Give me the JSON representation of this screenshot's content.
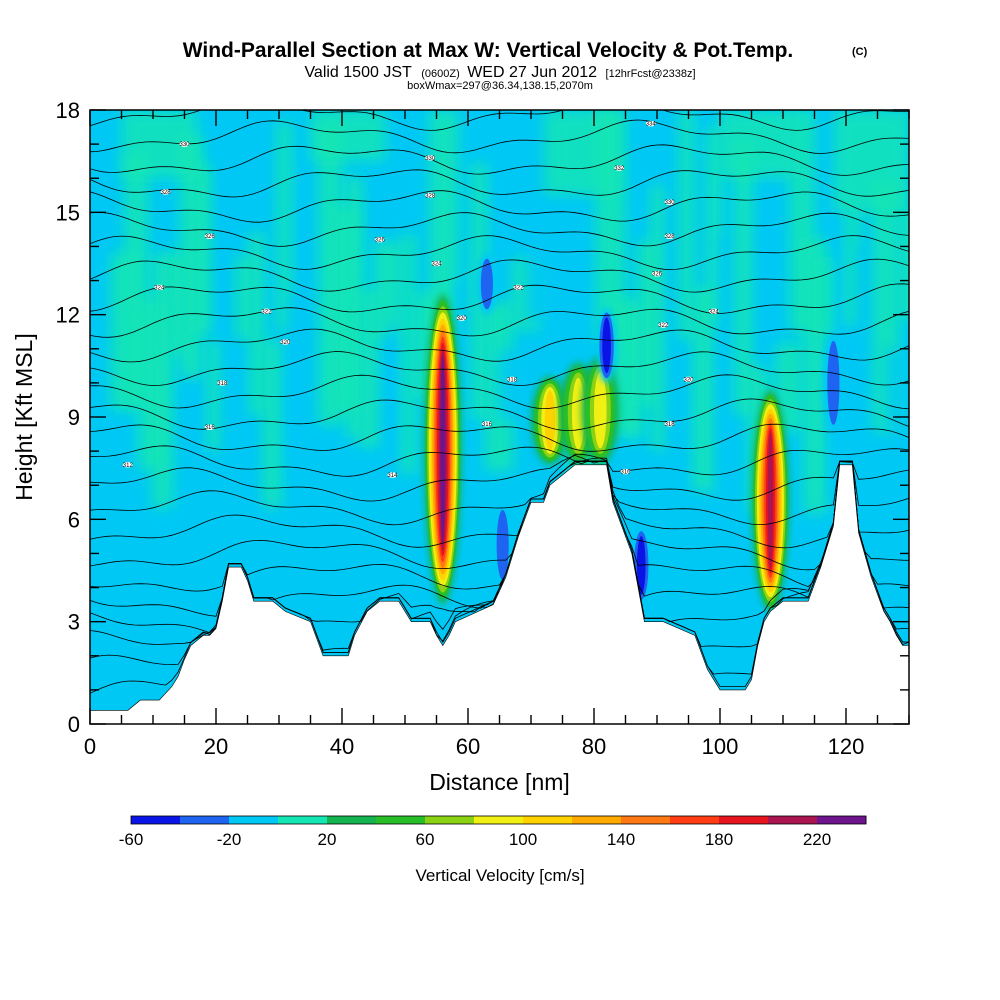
{
  "chart_data": {
    "type": "heatmap",
    "title": "Wind-Parallel Section at Max W: Vertical Velocity & Pot.Temp.",
    "title_mark": "(C)",
    "subtitle_parts": [
      "Valid 1500 JST",
      "(0600Z)",
      "WED 27 Jun 2012",
      "[12hrFcst@2338z]"
    ],
    "subtitle2": "boxWmax=297@36.34,138.15,2070m",
    "xlabel": "Distance [nm]",
    "ylabel": "Height [Kft MSL]",
    "xlim": [
      0,
      130
    ],
    "ylim": [
      0,
      18
    ],
    "x_ticks": [
      0,
      20,
      40,
      60,
      80,
      100,
      120
    ],
    "y_ticks": [
      0,
      3,
      6,
      9,
      12,
      15,
      18
    ],
    "colorbar": {
      "title": "Vertical Velocity [cm/s]",
      "levels": [
        -60,
        -40,
        -20,
        0,
        20,
        40,
        60,
        80,
        100,
        120,
        140,
        160,
        180,
        200,
        220,
        240
      ],
      "colors": [
        "#0a14e6",
        "#1e64f0",
        "#00c8f5",
        "#14e6b4",
        "#14b450",
        "#28be28",
        "#8cd214",
        "#f0f014",
        "#ffd200",
        "#ffaa00",
        "#ff7814",
        "#ff3c14",
        "#e6141e",
        "#aa1450",
        "#6e148c"
      ],
      "tick_labels": [
        -60,
        -20,
        20,
        60,
        100,
        140,
        180,
        220
      ]
    },
    "terrain_kft": [
      [
        0,
        0.4
      ],
      [
        6,
        0.4
      ],
      [
        8,
        0.7
      ],
      [
        11,
        0.7
      ],
      [
        13,
        1.1
      ],
      [
        14,
        1.4
      ],
      [
        15,
        1.9
      ],
      [
        16,
        2.3
      ],
      [
        18,
        2.6
      ],
      [
        19,
        2.6
      ],
      [
        20,
        2.8
      ],
      [
        21,
        3.6
      ],
      [
        22,
        4.6
      ],
      [
        24,
        4.6
      ],
      [
        25,
        4.2
      ],
      [
        26,
        3.6
      ],
      [
        29,
        3.6
      ],
      [
        31,
        3.3
      ],
      [
        35,
        3.0
      ],
      [
        37,
        2.0
      ],
      [
        41,
        2.0
      ],
      [
        42,
        2.6
      ],
      [
        44,
        3.3
      ],
      [
        46,
        3.6
      ],
      [
        49,
        3.6
      ],
      [
        51,
        3.0
      ],
      [
        54,
        3.0
      ],
      [
        55,
        2.6
      ],
      [
        56,
        2.3
      ],
      [
        57,
        2.6
      ],
      [
        58,
        3.0
      ],
      [
        64,
        3.5
      ],
      [
        66,
        4.3
      ],
      [
        68,
        5.5
      ],
      [
        70,
        6.5
      ],
      [
        72,
        6.5
      ],
      [
        73,
        7.0
      ],
      [
        75,
        7.3
      ],
      [
        77,
        7.6
      ],
      [
        82,
        7.6
      ],
      [
        83,
        6.5
      ],
      [
        86,
        5.0
      ],
      [
        87,
        4.0
      ],
      [
        88,
        3.0
      ],
      [
        89,
        3.0
      ],
      [
        91,
        3.0
      ],
      [
        96,
        2.6
      ],
      [
        98,
        1.6
      ],
      [
        99,
        1.3
      ],
      [
        100,
        1.0
      ],
      [
        104,
        1.0
      ],
      [
        105,
        1.3
      ],
      [
        106,
        2.3
      ],
      [
        107,
        3.0
      ],
      [
        108,
        3.3
      ],
      [
        110,
        3.6
      ],
      [
        114,
        3.6
      ],
      [
        116,
        4.6
      ],
      [
        118,
        5.8
      ],
      [
        119,
        7.6
      ],
      [
        121,
        7.6
      ],
      [
        122,
        5.6
      ],
      [
        124,
        4.3
      ],
      [
        126,
        3.3
      ],
      [
        127,
        3.0
      ],
      [
        128,
        2.6
      ],
      [
        129,
        2.3
      ],
      [
        130,
        2.3
      ]
    ],
    "updrafts": [
      {
        "x": 56.0,
        "y0": 3.5,
        "y1": 12.6,
        "w_max": 240
      },
      {
        "x": 108.0,
        "y0": 3.3,
        "y1": 9.8,
        "w_max": 220
      },
      {
        "x": 73.0,
        "y0": 7.6,
        "y1": 10.2,
        "w_max": 110
      },
      {
        "x": 77.5,
        "y0": 7.6,
        "y1": 10.6,
        "w_max": 90
      },
      {
        "x": 81.0,
        "y0": 7.6,
        "y1": 10.8,
        "w_max": 100
      }
    ],
    "downdrafts": [
      {
        "x": 65.5,
        "y0": 4.0,
        "y1": 6.5,
        "w_min": -40
      },
      {
        "x": 82.0,
        "y0": 10.0,
        "y1": 12.2,
        "w_min": -60
      },
      {
        "x": 87.5,
        "y0": 3.5,
        "y1": 5.8,
        "w_min": -60
      },
      {
        "x": 118.0,
        "y0": 8.5,
        "y1": 11.5,
        "w_min": -40
      },
      {
        "x": 63.0,
        "y0": 12.0,
        "y1": 13.8,
        "w_min": -40
      }
    ],
    "theta_contour_labels": [
      {
        "x": 6,
        "y": 7.6,
        "text": "312"
      },
      {
        "x": 19,
        "y": 8.7,
        "text": "316"
      },
      {
        "x": 21,
        "y": 10.0,
        "text": "318"
      },
      {
        "x": 31,
        "y": 11.2,
        "text": "320"
      },
      {
        "x": 28,
        "y": 12.1,
        "text": "322"
      },
      {
        "x": 11,
        "y": 12.8,
        "text": "324"
      },
      {
        "x": 19,
        "y": 14.3,
        "text": "326"
      },
      {
        "x": 12,
        "y": 15.6,
        "text": "328"
      },
      {
        "x": 15,
        "y": 17.0,
        "text": "330"
      },
      {
        "x": 48,
        "y": 7.3,
        "text": "314"
      },
      {
        "x": 63,
        "y": 8.8,
        "text": "316"
      },
      {
        "x": 67,
        "y": 10.1,
        "text": "318"
      },
      {
        "x": 59,
        "y": 11.9,
        "text": "320"
      },
      {
        "x": 68,
        "y": 12.8,
        "text": "322"
      },
      {
        "x": 55,
        "y": 13.5,
        "text": "324"
      },
      {
        "x": 46,
        "y": 14.2,
        "text": "326"
      },
      {
        "x": 54,
        "y": 15.5,
        "text": "328"
      },
      {
        "x": 54,
        "y": 16.6,
        "text": "330"
      },
      {
        "x": 85,
        "y": 7.4,
        "text": "316"
      },
      {
        "x": 92,
        "y": 8.8,
        "text": "318"
      },
      {
        "x": 95,
        "y": 10.1,
        "text": "320"
      },
      {
        "x": 91,
        "y": 11.7,
        "text": "322"
      },
      {
        "x": 99,
        "y": 12.1,
        "text": "324"
      },
      {
        "x": 90,
        "y": 13.2,
        "text": "326"
      },
      {
        "x": 92,
        "y": 14.3,
        "text": "328"
      },
      {
        "x": 92,
        "y": 15.3,
        "text": "330"
      },
      {
        "x": 84,
        "y": 16.3,
        "text": "332"
      },
      {
        "x": 89,
        "y": 17.6,
        "text": "334"
      }
    ]
  }
}
